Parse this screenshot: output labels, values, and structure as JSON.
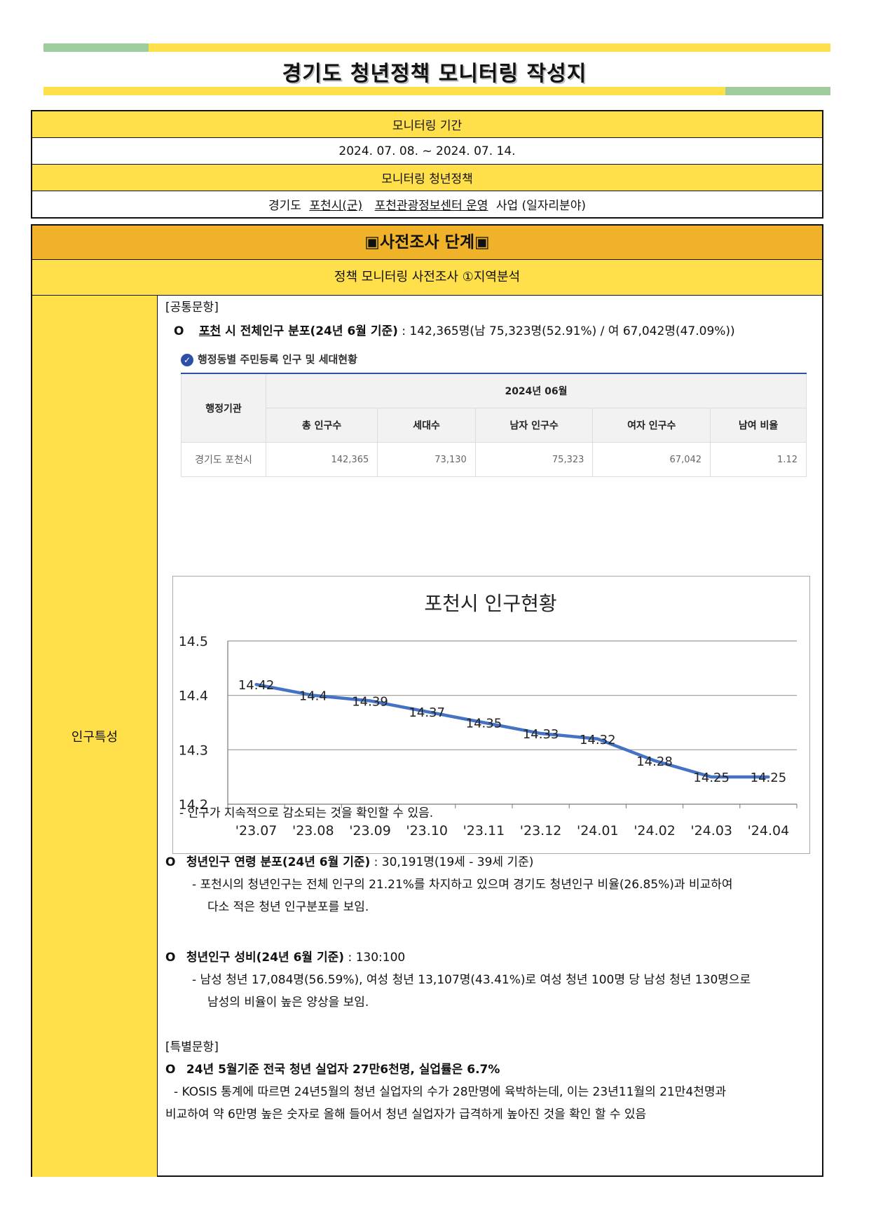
{
  "header": {
    "title": "경기도 청년정책 모니터링 작성지",
    "colors": {
      "green": "#9FCC9D",
      "yellow": "#FFE04B"
    }
  },
  "top_table": {
    "period_label": "모니터링 기간",
    "period_value": "2024. 07. 08. ~ 2024. 07. 14.",
    "policy_label": "모니터링 청년정책",
    "policy_prefix": "경기도",
    "policy_city": "포천시(군)",
    "policy_name": "포천관광정보센터 운영",
    "policy_suffix": "사업 (일자리분야)"
  },
  "section": {
    "stage": "▣사전조사 단계▣",
    "subtitle": "정책 모니터링 사전조사 ①지역분석",
    "left_label": "인구특성"
  },
  "content": {
    "common": "[공통문항]",
    "pop_city": "포천",
    "pop_title": "시 전체인구 분포(24년 6월 기준)",
    "pop_value": ": 142,365명(남 75,323명(52.91%) / 여 67,042명(47.09%))",
    "stat_caption": "행정동별 주민등록 인구 및 세대현황",
    "stat_table": {
      "row_header": "행정기관",
      "period": "2024년 06월",
      "columns": [
        "총 인구수",
        "세대수",
        "남자 인구수",
        "여자 인구수",
        "남여 비율"
      ],
      "row_name": "경기도 포천시",
      "values": [
        "142,365",
        "73,130",
        "75,323",
        "67,042",
        "1.12"
      ]
    },
    "chart_note": "- 인구가 지속적으로 감소되는 것을 확인할 수 있음.",
    "youth_title": "청년인구 연령 분포(24년 6월 기준)",
    "youth_value": ": 30,191명(19세 - 39세 기준)",
    "youth_desc1": "- 포천시의 청년인구는 전체 인구의 21.21%를 차지하고 있으며 경기도 청년인구 비율(26.85%)과 비교하여",
    "youth_desc2": "다소 적은 청년 인구분포를 보임.",
    "ratio_title": "청년인구 성비(24년 6월 기준)",
    "ratio_value": ": 130:100",
    "ratio_desc1": "- 남성 청년 17,084명(56.59%), 여성 청년 13,107명(43.41%)로 여성 청년 100명 당 남성 청년 130명으로",
    "ratio_desc2": "남성의 비율이 높은 양상을 보임.",
    "special": "[특별문항]",
    "unemp_title": "24년 5월기준 전국 청년 실업자 27만6천명, 실업률은 6.7%",
    "unemp_desc1": "- KOSIS 통계에 따르면 24년5월의 청년 실업자의 수가 28만명에 육박하는데, 이는 23년11월의 21만4천명과",
    "unemp_desc2": "비교하여 약 6만명 높은 숫자로 올해 들어서 청년 실업자가 급격하게 높아진 것을 확인 할 수 있음"
  },
  "chart_data": {
    "type": "line",
    "title": "포천시 인구현황",
    "categories": [
      "'23.07",
      "'23.08",
      "'23.09",
      "'23.10",
      "'23.11",
      "'23.12",
      "'24.01",
      "'24.02",
      "'24.03",
      "'24.04"
    ],
    "values": [
      14.42,
      14.4,
      14.39,
      14.37,
      14.35,
      14.33,
      14.32,
      14.28,
      14.25,
      14.25
    ],
    "yticks": [
      "14.5",
      "14.4",
      "14.3",
      "14.2"
    ],
    "ylim": [
      14.2,
      14.5
    ],
    "grid": true,
    "line_color": "#4472C4"
  }
}
